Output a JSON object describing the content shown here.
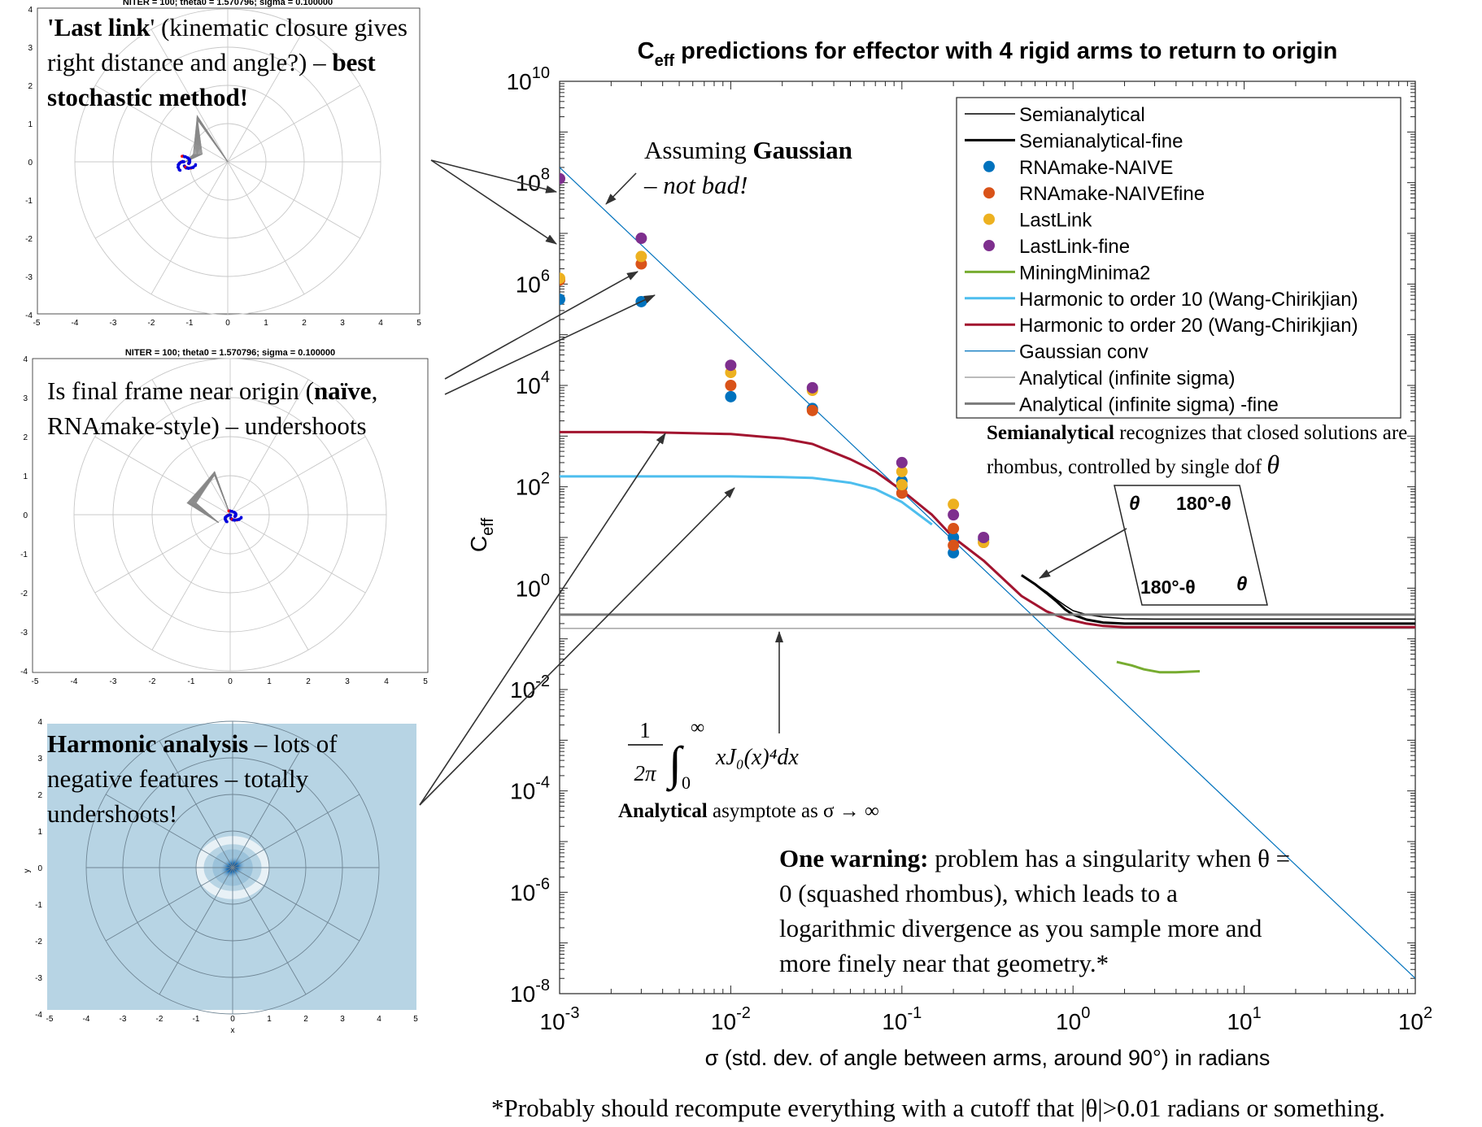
{
  "chart_data": {
    "type": "line",
    "title_main": "C",
    "title_sub": "eff",
    "title_rest": " predictions for effector with 4 rigid arms to return to origin",
    "ylabel_main": "C",
    "ylabel_sub": "eff",
    "xlabel": "σ (std. dev. of angle between arms, around 90°)  in radians",
    "x_scale": "log",
    "y_scale": "log",
    "xlim": [
      0.001,
      100
    ],
    "ylim": [
      1e-08,
      10000000000.0
    ],
    "x_tick_exps": [
      "-3",
      "-2",
      "-1",
      "0",
      "1",
      "2"
    ],
    "y_tick_exps": [
      "-8",
      "-6",
      "-4",
      "-2",
      "0",
      "2",
      "4",
      "6",
      "8",
      "10"
    ],
    "tick_base": "10",
    "legend_position": "top-right",
    "series": [
      {
        "name": "Semianalytical",
        "color": "#000000",
        "width": 1.5,
        "kind": "line",
        "x": [
          0.5,
          0.6,
          0.7,
          0.8,
          0.9,
          1.0,
          1.2,
          1.5,
          2,
          3,
          5,
          10,
          20,
          50,
          100
        ],
        "y": [
          1.8,
          1.2,
          0.85,
          0.6,
          0.45,
          0.36,
          0.3,
          0.27,
          0.25,
          0.245,
          0.245,
          0.245,
          0.245,
          0.245,
          0.245
        ]
      },
      {
        "name": "Semianalytical-fine",
        "color": "#000000",
        "width": 3,
        "kind": "line",
        "x": [
          0.5,
          0.6,
          0.7,
          0.8,
          0.9,
          1.0,
          1.2,
          1.5,
          2,
          3,
          5,
          10,
          20,
          50,
          100
        ],
        "y": [
          1.8,
          1.2,
          0.8,
          0.55,
          0.38,
          0.3,
          0.24,
          0.21,
          0.2,
          0.2,
          0.2,
          0.2,
          0.2,
          0.2,
          0.2
        ]
      },
      {
        "name": "RNAmake-NAIVE",
        "color": "#0072BD",
        "kind": "points",
        "x": [
          0.001,
          0.003,
          0.01,
          0.03,
          0.1,
          0.1,
          0.2,
          0.2,
          0.3
        ],
        "y": [
          500000,
          450000,
          6000,
          3500,
          100,
          130,
          5,
          10,
          9
        ]
      },
      {
        "name": "RNAmake-NAIVEfine",
        "color": "#D95319",
        "kind": "points",
        "x": [
          0.001,
          0.003,
          0.01,
          0.03,
          0.1,
          0.2,
          0.2,
          0.3
        ],
        "y": [
          1200000,
          2500000,
          10000,
          3200,
          75,
          15,
          7,
          8
        ]
      },
      {
        "name": "LastLink",
        "color": "#EDB120",
        "kind": "points",
        "x": [
          0.001,
          0.003,
          0.01,
          0.03,
          0.1,
          0.1,
          0.2,
          0.3
        ],
        "y": [
          1300000,
          3500000,
          18000,
          8000,
          200,
          110,
          45,
          8
        ]
      },
      {
        "name": "LastLink-fine",
        "color": "#7E2F8E",
        "kind": "points",
        "x": [
          0.001,
          0.003,
          0.01,
          0.03,
          0.1,
          0.2,
          0.3
        ],
        "y": [
          120000000,
          8000000,
          25000,
          9000,
          300,
          28,
          10
        ]
      },
      {
        "name": "MiningMinima2",
        "color": "#77AC30",
        "width": 3,
        "kind": "line",
        "x": [
          1.8,
          2.2,
          2.6,
          3.2,
          4,
          5.5
        ],
        "y": [
          0.035,
          0.03,
          0.025,
          0.022,
          0.022,
          0.023
        ]
      },
      {
        "name": "Harmonic to order 10 (Wang-Chirikjian)",
        "color": "#4DBEEE",
        "width": 3,
        "kind": "line",
        "x": [
          0.001,
          0.003,
          0.01,
          0.02,
          0.03,
          0.05,
          0.07,
          0.1,
          0.15
        ],
        "y": [
          160,
          160,
          160,
          155,
          150,
          120,
          90,
          50,
          18
        ]
      },
      {
        "name": "Harmonic to order 20 (Wang-Chirikjian)",
        "color": "#A2142F",
        "width": 3,
        "kind": "line",
        "x": [
          0.001,
          0.003,
          0.01,
          0.02,
          0.03,
          0.05,
          0.07,
          0.1,
          0.15,
          0.2,
          0.3,
          0.5,
          0.7,
          0.9,
          1.2,
          1.5,
          2,
          3,
          5,
          10,
          20,
          50,
          100
        ],
        "y": [
          1200,
          1200,
          1100,
          900,
          700,
          350,
          200,
          85,
          28,
          10,
          3.5,
          0.7,
          0.35,
          0.25,
          0.2,
          0.18,
          0.17,
          0.17,
          0.17,
          0.17,
          0.17,
          0.17,
          0.17
        ]
      },
      {
        "name": "Gaussian conv",
        "color": "#0072BD",
        "width": 1.2,
        "kind": "line",
        "x": [
          0.001,
          100
        ],
        "y": [
          200000000,
          2e-08
        ]
      },
      {
        "name": "Analytical (infinite sigma)",
        "color": "#777777",
        "width": 1,
        "kind": "line",
        "x": [
          0.001,
          100
        ],
        "y": [
          0.16,
          0.16
        ]
      },
      {
        "name": "Analytical (infinite sigma) -fine",
        "color": "#7a7a7a",
        "width": 3,
        "kind": "line",
        "x": [
          0.001,
          100
        ],
        "y": [
          0.3,
          0.3
        ]
      },
      {
        "name": "",
        "color": "#3f9b48",
        "width": 2.5,
        "kind": "line",
        "x": [
          0.001,
          1.8
        ],
        "y": [
          200000000,
          0.035
        ]
      }
    ]
  },
  "polar_plots": {
    "title_1": "NITER = 100; theta0 = 1.570796; sigma = 0.100000",
    "title_2": "NITER = 100; theta0 = 1.570796; sigma = 0.100000",
    "ticks_x": [
      "-5",
      "-4",
      "-3",
      "-2",
      "-1",
      "0",
      "1",
      "2",
      "3",
      "4",
      "5"
    ],
    "ticks_y": [
      "4",
      "3",
      "2",
      "1",
      "0",
      "-1",
      "-2",
      "-3",
      "-4"
    ],
    "xlabel": "x",
    "ylabel": "y"
  },
  "annotations": {
    "lastlink_quote": "'Last link",
    "lastlink_rest": "' (kinematic closure gives right distance and angle?) – ",
    "lastlink_bold": "best stochastic method!",
    "naive_pre": "Is final frame near origin (",
    "naive_bold": "naïve",
    "naive_post": ", RNAmake-style) – undershoots",
    "harmonic_bold": "Harmonic analysis",
    "harmonic_rest": " – lots of negative features – totally undershoots!",
    "gaussian_pre": "Assuming ",
    "gaussian_bold": "Gaussian",
    "gaussian_italic": "– not bad!",
    "semi_bold": "Semianalytical",
    "semi_rest": " recognizes that closed solutions are rhombus, controlled by single dof ",
    "semi_theta": "θ",
    "rhombus_a": "θ",
    "rhombus_b": "180°-θ",
    "rhombus_c": "180°-θ",
    "rhombus_d": "θ",
    "integral_frac_num": "1",
    "integral_frac_den": "2π",
    "integral_upper": "∞",
    "integral_lower": "0",
    "integral_body": "xJ₀(x)⁴dx",
    "analytical_bold": "Analytical",
    "analytical_rest": " asymptote as σ → ∞",
    "warning_bold": "One warning:",
    "warning_rest": " problem has a singularity when θ = 0 (squashed rhombus), which leads to a logarithmic divergence as you sample more and more finely near that geometry.*",
    "footnote": "*Probably should recompute everything with a cutoff that |θ|>0.01 radians or something."
  }
}
